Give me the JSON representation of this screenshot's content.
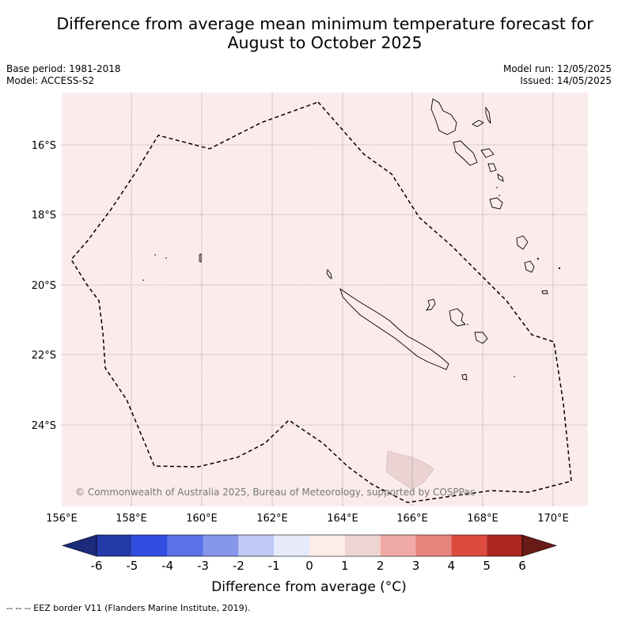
{
  "title_line1": "Difference from average mean minimum temperature forecast for",
  "title_line2": "August to October 2025",
  "base_period": "Base period: 1981-2018",
  "model": "Model: ACCESS-S2",
  "model_run": "Model run: 12/05/2025",
  "issued": "Issued: 14/05/2025",
  "copyright": "© Commonwealth of Australia 2025, Bureau of Meteorology, supported by COSPPac",
  "lon_labels": [
    "156°E",
    "158°E",
    "160°E",
    "162°E",
    "164°E",
    "166°E",
    "168°E",
    "170°E"
  ],
  "lat_labels": [
    "16°S",
    "18°S",
    "20°S",
    "22°S",
    "24°S"
  ],
  "colorbar": {
    "ticks": [
      "-6",
      "-5",
      "-4",
      "-3",
      "-2",
      "-1",
      "0",
      "1",
      "2",
      "3",
      "4",
      "5",
      "6"
    ],
    "colors": [
      "#243aa8",
      "#2f4de0",
      "#5a72e6",
      "#8696ea",
      "#c0c8f4",
      "#e6eafa",
      "#fdece8",
      "#eed5d2",
      "#f0aaa5",
      "#e6847c",
      "#dd4b3f",
      "#ac2721"
    ],
    "low_extend_color": "#1c2b7a",
    "high_extend_color": "#6a1a17",
    "label": "Difference from average (°C)"
  },
  "map_background_color": "#fbeceb",
  "anomaly_patch_color": "#ead3d2",
  "footer": "--  --  -- EEZ border V11 (Flanders Marine Institute, 2019)."
}
